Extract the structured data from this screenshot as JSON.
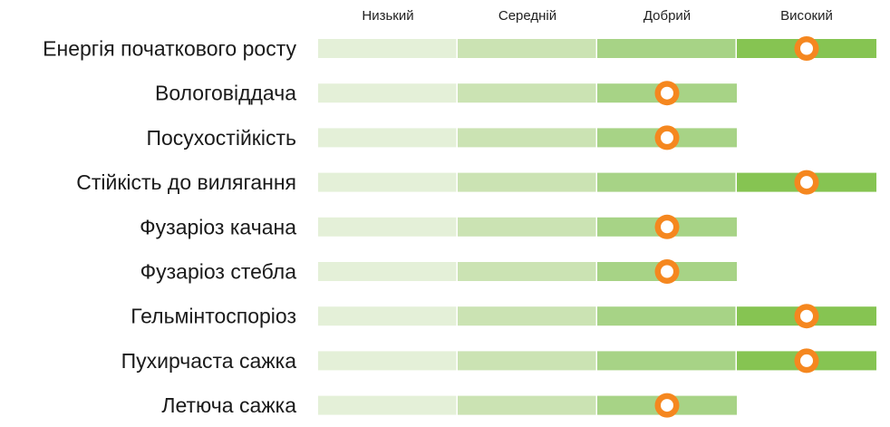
{
  "chart_data": {
    "type": "bar",
    "levels": [
      "Низький",
      "Середній",
      "Добрий",
      "Високий"
    ],
    "segment_colors": [
      "#e4f0d8",
      "#cbe3b3",
      "#a7d386",
      "#86c452"
    ],
    "marker_color": "#f5871f",
    "categories": [
      "Енергія початкового росту",
      "Вологовіддача",
      "Посухостійкість",
      "Стійкість до вилягання",
      "Фузаріоз качана",
      "Фузаріоз стебла",
      "Гельмінтоспоріоз",
      "Пухирчаста сажка",
      "Летюча сажка"
    ],
    "values": [
      4,
      3,
      3,
      4,
      3,
      3,
      4,
      4,
      3
    ],
    "value_labels": {
      "1": "Низький",
      "2": "Середній",
      "3": "Добрий",
      "4": "Високий"
    },
    "xlim": [
      0,
      4
    ]
  }
}
